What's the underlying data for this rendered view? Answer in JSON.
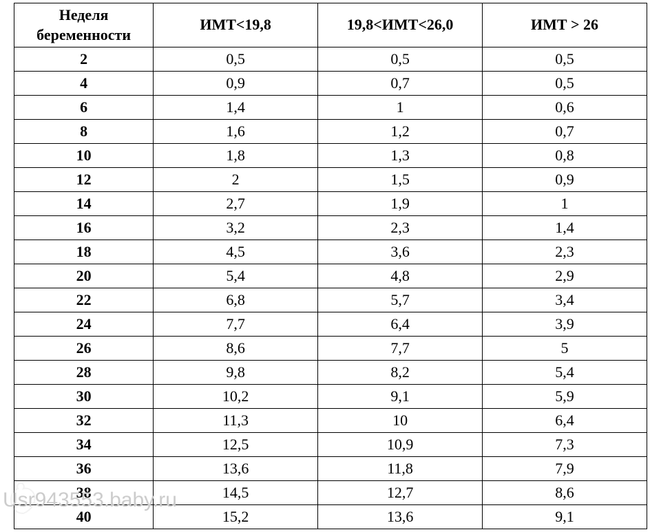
{
  "table": {
    "type": "table",
    "background_color": "#ffffff",
    "border_color": "#000000",
    "font_family": "Times New Roman",
    "header_fontsize": 22,
    "cell_fontsize": 22,
    "columns": [
      {
        "key": "week",
        "label": "Неделя\nбеременности",
        "bold": true,
        "width_pct": 22
      },
      {
        "key": "bmi_low",
        "label": "ИМТ<19,8",
        "bold": false,
        "width_pct": 26
      },
      {
        "key": "bmi_mid",
        "label": "19,8<ИМТ<26,0",
        "bold": false,
        "width_pct": 26
      },
      {
        "key": "bmi_high",
        "label": "ИМТ > 26",
        "bold": false,
        "width_pct": 26
      }
    ],
    "rows": [
      {
        "week": "2",
        "bmi_low": "0,5",
        "bmi_mid": "0,5",
        "bmi_high": "0,5"
      },
      {
        "week": "4",
        "bmi_low": "0,9",
        "bmi_mid": "0,7",
        "bmi_high": "0,5"
      },
      {
        "week": "6",
        "bmi_low": "1,4",
        "bmi_mid": "1",
        "bmi_high": "0,6"
      },
      {
        "week": "8",
        "bmi_low": "1,6",
        "bmi_mid": "1,2",
        "bmi_high": "0,7"
      },
      {
        "week": "10",
        "bmi_low": "1,8",
        "bmi_mid": "1,3",
        "bmi_high": "0,8"
      },
      {
        "week": "12",
        "bmi_low": "2",
        "bmi_mid": "1,5",
        "bmi_high": "0,9"
      },
      {
        "week": "14",
        "bmi_low": "2,7",
        "bmi_mid": "1,9",
        "bmi_high": "1"
      },
      {
        "week": "16",
        "bmi_low": "3,2",
        "bmi_mid": "2,3",
        "bmi_high": "1,4"
      },
      {
        "week": "18",
        "bmi_low": "4,5",
        "bmi_mid": "3,6",
        "bmi_high": "2,3"
      },
      {
        "week": "20",
        "bmi_low": "5,4",
        "bmi_mid": "4,8",
        "bmi_high": "2,9"
      },
      {
        "week": "22",
        "bmi_low": "6,8",
        "bmi_mid": "5,7",
        "bmi_high": "3,4"
      },
      {
        "week": "24",
        "bmi_low": "7,7",
        "bmi_mid": "6,4",
        "bmi_high": "3,9"
      },
      {
        "week": "26",
        "bmi_low": "8,6",
        "bmi_mid": "7,7",
        "bmi_high": "5"
      },
      {
        "week": "28",
        "bmi_low": "9,8",
        "bmi_mid": "8,2",
        "bmi_high": "5,4"
      },
      {
        "week": "30",
        "bmi_low": "10,2",
        "bmi_mid": "9,1",
        "bmi_high": "5,9"
      },
      {
        "week": "32",
        "bmi_low": "11,3",
        "bmi_mid": "10",
        "bmi_high": "6,4"
      },
      {
        "week": "34",
        "bmi_low": "12,5",
        "bmi_mid": "10,9",
        "bmi_high": "7,3"
      },
      {
        "week": "36",
        "bmi_low": "13,6",
        "bmi_mid": "11,8",
        "bmi_high": "7,9"
      },
      {
        "week": "38",
        "bmi_low": "14,5",
        "bmi_mid": "12,7",
        "bmi_high": "8,6"
      },
      {
        "week": "40",
        "bmi_low": "15,2",
        "bmi_mid": "13,6",
        "bmi_high": "9,1"
      }
    ]
  },
  "watermark": {
    "text": "Usr943553.baby.ru",
    "color": "#cccccc",
    "fontsize": 30,
    "logo_color": "#cccccc"
  }
}
